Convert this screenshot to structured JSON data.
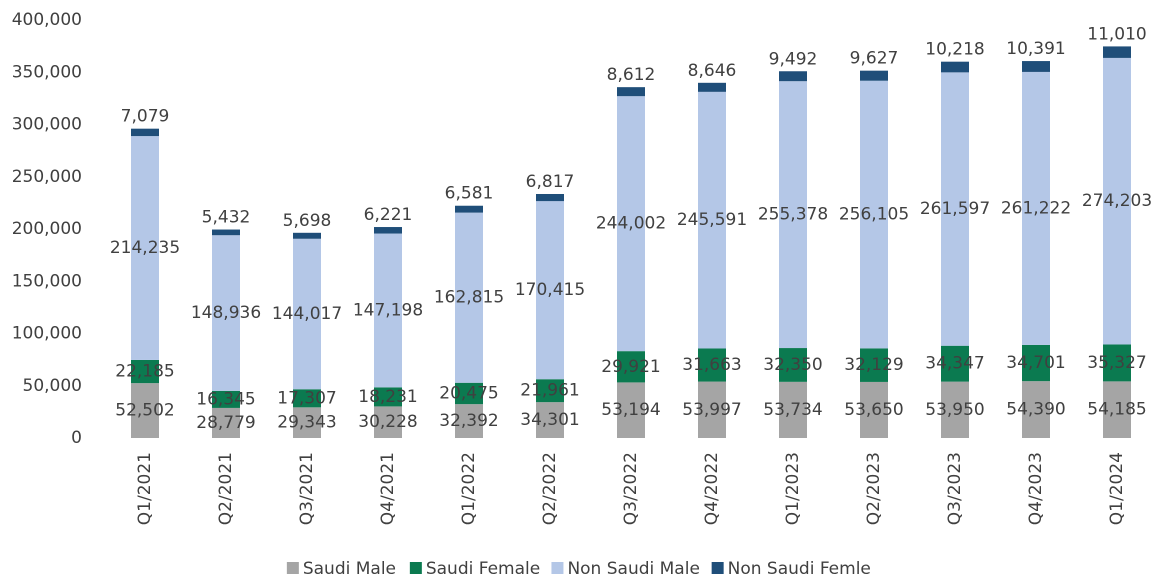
{
  "chart_data": {
    "type": "stacked_bar",
    "categories": [
      "Q1/2021",
      "Q2/2021",
      "Q3/2021",
      "Q4/2021",
      "Q1/2022",
      "Q2/2022",
      "Q3/2022",
      "Q4/2022",
      "Q1/2023",
      "Q2/2023",
      "Q3/2023",
      "Q4/2023",
      "Q1/2024"
    ],
    "series": [
      {
        "name": "Saudi Male",
        "color": "#a5a5a5",
        "values": [
          52502,
          28779,
          29343,
          30228,
          32392,
          34301,
          53194,
          53997,
          53734,
          53650,
          53950,
          54390,
          54185
        ],
        "value_labels": [
          "52,502",
          "28,779",
          "29,343",
          "30,228",
          "32,392",
          "34,301",
          "53,194",
          "53,997",
          "53,734",
          "53,650",
          "53,950",
          "54,390",
          "54,185"
        ]
      },
      {
        "name": "Saudi Female",
        "color": "#0b7a50",
        "values": [
          22185,
          16345,
          17307,
          18231,
          20475,
          21961,
          29921,
          31663,
          32350,
          32129,
          34347,
          34701,
          35327
        ],
        "value_labels": [
          "22,185",
          "16,345",
          "17,307",
          "18,231",
          "20,475",
          "21,961",
          "29,921",
          "31,663",
          "32,350",
          "32,129",
          "34,347",
          "34,701",
          "35,327"
        ]
      },
      {
        "name": "Non Saudi Male",
        "color": "#b4c7e7",
        "values": [
          214235,
          148936,
          144017,
          147198,
          162815,
          170415,
          244002,
          245591,
          255378,
          256105,
          261597,
          261222,
          274203
        ],
        "value_labels": [
          "214,235",
          "148,936",
          "144,017",
          "147,198",
          "162,815",
          "170,415",
          "244,002",
          "245,591",
          "255,378",
          "256,105",
          "261,597",
          "261,222",
          "274,203"
        ]
      },
      {
        "name": "Non Saudi Femle",
        "color": "#1f4e79",
        "values": [
          7079,
          5432,
          5698,
          6221,
          6581,
          6817,
          8612,
          8646,
          9492,
          9627,
          10218,
          10391,
          11010
        ],
        "value_labels": [
          "7,079",
          "5,432",
          "5,698",
          "6,221",
          "6,581",
          "6,817",
          "8,612",
          "8,646",
          "9,492",
          "9,627",
          "10,218",
          "10,391",
          "11,010"
        ]
      }
    ],
    "ylim": [
      0,
      400000
    ],
    "yticks": [
      0,
      {
        "value": 50000,
        "label": "50,000"
      },
      {
        "value": 100000,
        "label": "100,000"
      },
      {
        "value": 150000,
        "label": "150,000"
      },
      {
        "value": 200000,
        "label": "200,000"
      },
      {
        "value": 250000,
        "label": "250,000"
      },
      {
        "value": 300000,
        "label": "300,000"
      },
      {
        "value": 350000,
        "label": "350,000"
      },
      {
        "value": 400000,
        "label": "400,000"
      }
    ],
    "grid": false,
    "legend": "bottom"
  }
}
